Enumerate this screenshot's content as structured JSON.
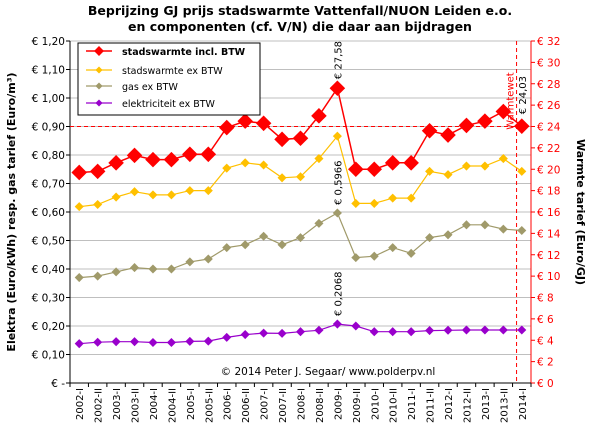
{
  "chart_data": {
    "type": "line",
    "title": "Beprijzing GJ prijs stadswarmte Vattenfall/NUON Leiden e.o.",
    "subtitle": "en componenten (cf. V/N) die daar aan bijdragen",
    "ylabel_left": "Elektra (Euro/kWh) resp. gas tarief (Euro/m³)",
    "ylabel_right": "Warmte tarief (Euro/GJ)",
    "ylim_left": [
      0,
      1.2
    ],
    "ylim_right": [
      0,
      32
    ],
    "yticks_left": [
      "€ -",
      "€ 0,10",
      "€ 0,20",
      "€ 0,30",
      "€ 0,40",
      "€ 0,50",
      "€ 0,60",
      "€ 0,70",
      "€ 0,80",
      "€ 0,90",
      "€ 1,00",
      "€ 1,10",
      "€ 1,20"
    ],
    "yticks_right": [
      "€ 0",
      "€ 2",
      "€ 4",
      "€ 6",
      "€ 8",
      "€ 10",
      "€ 12",
      "€ 14",
      "€ 16",
      "€ 18",
      "€ 20",
      "€ 22",
      "€ 24",
      "€ 26",
      "€ 28",
      "€ 30",
      "€ 32"
    ],
    "categories": [
      "2002-I",
      "2002-II",
      "2003-I",
      "2003-II",
      "2004-I",
      "2004-II",
      "2005-I",
      "2005-II",
      "2006-I",
      "2006-II",
      "2007-I",
      "2007-II",
      "2008-I",
      "2008-II",
      "2009-I",
      "2009-II",
      "2010-I",
      "2010-II",
      "2011-I",
      "2011-II",
      "2012-I",
      "2012-II",
      "2013-I",
      "2013-II",
      "2014-I"
    ],
    "x_labels": [
      "2002-I",
      "2002-II",
      "2003-I",
      "2003-II",
      "2004-I",
      "2004-II",
      "2005-I",
      "2005-II",
      "2006-I",
      "2006-II",
      "2007-I",
      "2007-II",
      "2008-I",
      "2008-II",
      "2009-I",
      "2009-II",
      "2010-I",
      "2010-II",
      "2011-I",
      "2011-II",
      "2012-I",
      "2012-II",
      "2013-I",
      "2013-II",
      "2014-I"
    ],
    "series": [
      {
        "name": "stadswarmte incl. BTW",
        "axis": "right",
        "color": "#ff0000",
        "values": [
          19.7,
          19.8,
          20.6,
          21.3,
          20.9,
          20.9,
          21.4,
          21.4,
          23.9,
          24.5,
          24.3,
          22.8,
          22.9,
          25,
          27.58,
          20,
          20,
          20.6,
          20.6,
          23.6,
          23.2,
          24.1,
          24.5,
          25.4,
          24.03
        ]
      },
      {
        "name": "stadswarmte ex BTW",
        "axis": "right",
        "color": "#ffc000",
        "values": [
          16.5,
          16.7,
          17.4,
          17.9,
          17.6,
          17.6,
          18,
          18,
          20.1,
          20.6,
          20.4,
          19.2,
          19.3,
          21,
          23.1,
          16.8,
          16.8,
          17.3,
          17.3,
          19.8,
          19.5,
          20.3,
          20.3,
          21,
          19.8
        ]
      },
      {
        "name": "gas ex BTW",
        "axis": "left",
        "color": "#a09a6a",
        "values": [
          0.37,
          0.375,
          0.39,
          0.405,
          0.4,
          0.4,
          0.425,
          0.435,
          0.475,
          0.485,
          0.515,
          0.485,
          0.51,
          0.56,
          0.5966,
          0.44,
          0.445,
          0.475,
          0.455,
          0.51,
          0.52,
          0.555,
          0.555,
          0.54,
          0.535
        ]
      },
      {
        "name": "elektriciteit ex BTW",
        "axis": "left",
        "color": "#9900cc",
        "values": [
          0.138,
          0.143,
          0.145,
          0.145,
          0.142,
          0.142,
          0.146,
          0.147,
          0.16,
          0.17,
          0.175,
          0.174,
          0.18,
          0.185,
          0.2068,
          0.2,
          0.18,
          0.18,
          0.18,
          0.184,
          0.185,
          0.186,
          0.186,
          0.186,
          0.186
        ]
      }
    ],
    "reference_line": {
      "axis": "right",
      "value": 24
    },
    "marker_line": {
      "label": "Warmtewet",
      "position": "between 2013-II and 2014-I"
    },
    "annotations": [
      {
        "text": "€ 27,58",
        "category": "2009-I"
      },
      {
        "text": "€ 0,5966",
        "category": "2009-I"
      },
      {
        "text": "€ 0,2068",
        "category": "2009-I"
      },
      {
        "text": "€ 24,03",
        "category": "2014-I"
      }
    ],
    "credit": "© 2014 Peter J. Segaar/ www.polderpv.nl",
    "legend_position": "top-left"
  }
}
